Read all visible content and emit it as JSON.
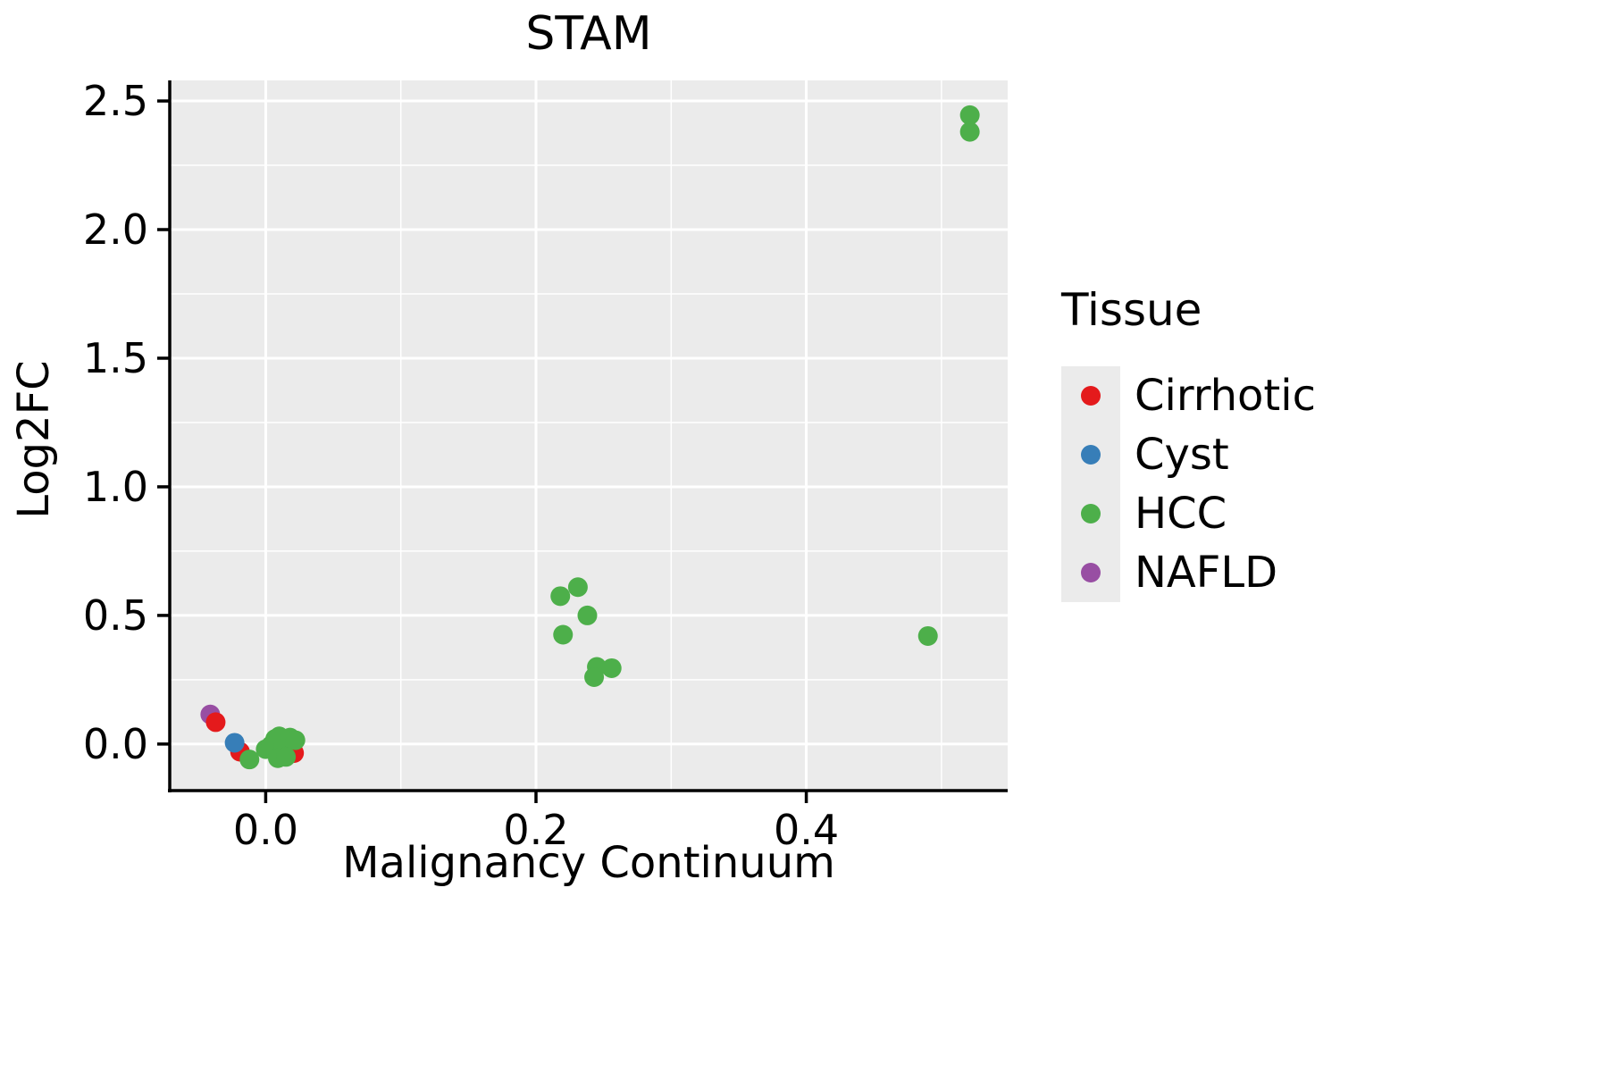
{
  "title": "STAM",
  "axes": {
    "x_label": "Malignancy Continuum",
    "y_label": "Log2FC",
    "x_ticks": [
      0.0,
      0.2,
      0.4
    ],
    "x_tick_labels": [
      "0.0",
      "0.2",
      "0.4"
    ],
    "y_ticks": [
      0.0,
      0.5,
      1.0,
      1.5,
      2.0,
      2.5
    ],
    "y_tick_labels": [
      "0.0",
      "0.5",
      "1.0",
      "1.5",
      "2.0",
      "2.5"
    ]
  },
  "legend": {
    "title": "Tissue",
    "entries": [
      {
        "label": "Cirrhotic",
        "color": "#e41a1c"
      },
      {
        "label": "Cyst",
        "color": "#377eb8"
      },
      {
        "label": "HCC",
        "color": "#4daf4a"
      },
      {
        "label": "NAFLD",
        "color": "#984ea3"
      }
    ]
  },
  "chart_data": {
    "type": "scatter",
    "title": "STAM",
    "xlabel": "Malignancy Continuum",
    "ylabel": "Log2FC",
    "xlim": [
      -0.071,
      0.549
    ],
    "ylim": [
      -0.181,
      2.58
    ],
    "grid": true,
    "plot_background": "#ebebeb",
    "gridline_color": "#ffffff",
    "legend_position": "right",
    "series": [
      {
        "name": "NAFLD",
        "color": "#984ea3",
        "points": [
          [
            -0.041,
            0.115
          ]
        ]
      },
      {
        "name": "Cirrhotic",
        "color": "#e41a1c",
        "points": [
          [
            -0.037,
            0.085
          ],
          [
            -0.019,
            -0.03
          ],
          [
            0.021,
            -0.035
          ]
        ]
      },
      {
        "name": "Cyst",
        "color": "#377eb8",
        "points": [
          [
            -0.023,
            0.005
          ]
        ]
      },
      {
        "name": "HCC",
        "color": "#4daf4a",
        "points": [
          [
            -0.012,
            -0.06
          ],
          [
            0.0,
            -0.02
          ],
          [
            0.004,
            -0.005
          ],
          [
            0.007,
            0.02
          ],
          [
            0.01,
            0.03
          ],
          [
            0.013,
            0.0
          ],
          [
            0.018,
            0.025
          ],
          [
            0.022,
            0.015
          ],
          [
            0.009,
            -0.055
          ],
          [
            0.015,
            -0.05
          ],
          [
            0.218,
            0.575
          ],
          [
            0.231,
            0.61
          ],
          [
            0.238,
            0.5
          ],
          [
            0.22,
            0.425
          ],
          [
            0.245,
            0.3
          ],
          [
            0.256,
            0.295
          ],
          [
            0.243,
            0.26
          ],
          [
            0.49,
            0.42
          ],
          [
            0.521,
            2.445
          ],
          [
            0.521,
            2.38
          ]
        ]
      }
    ]
  }
}
